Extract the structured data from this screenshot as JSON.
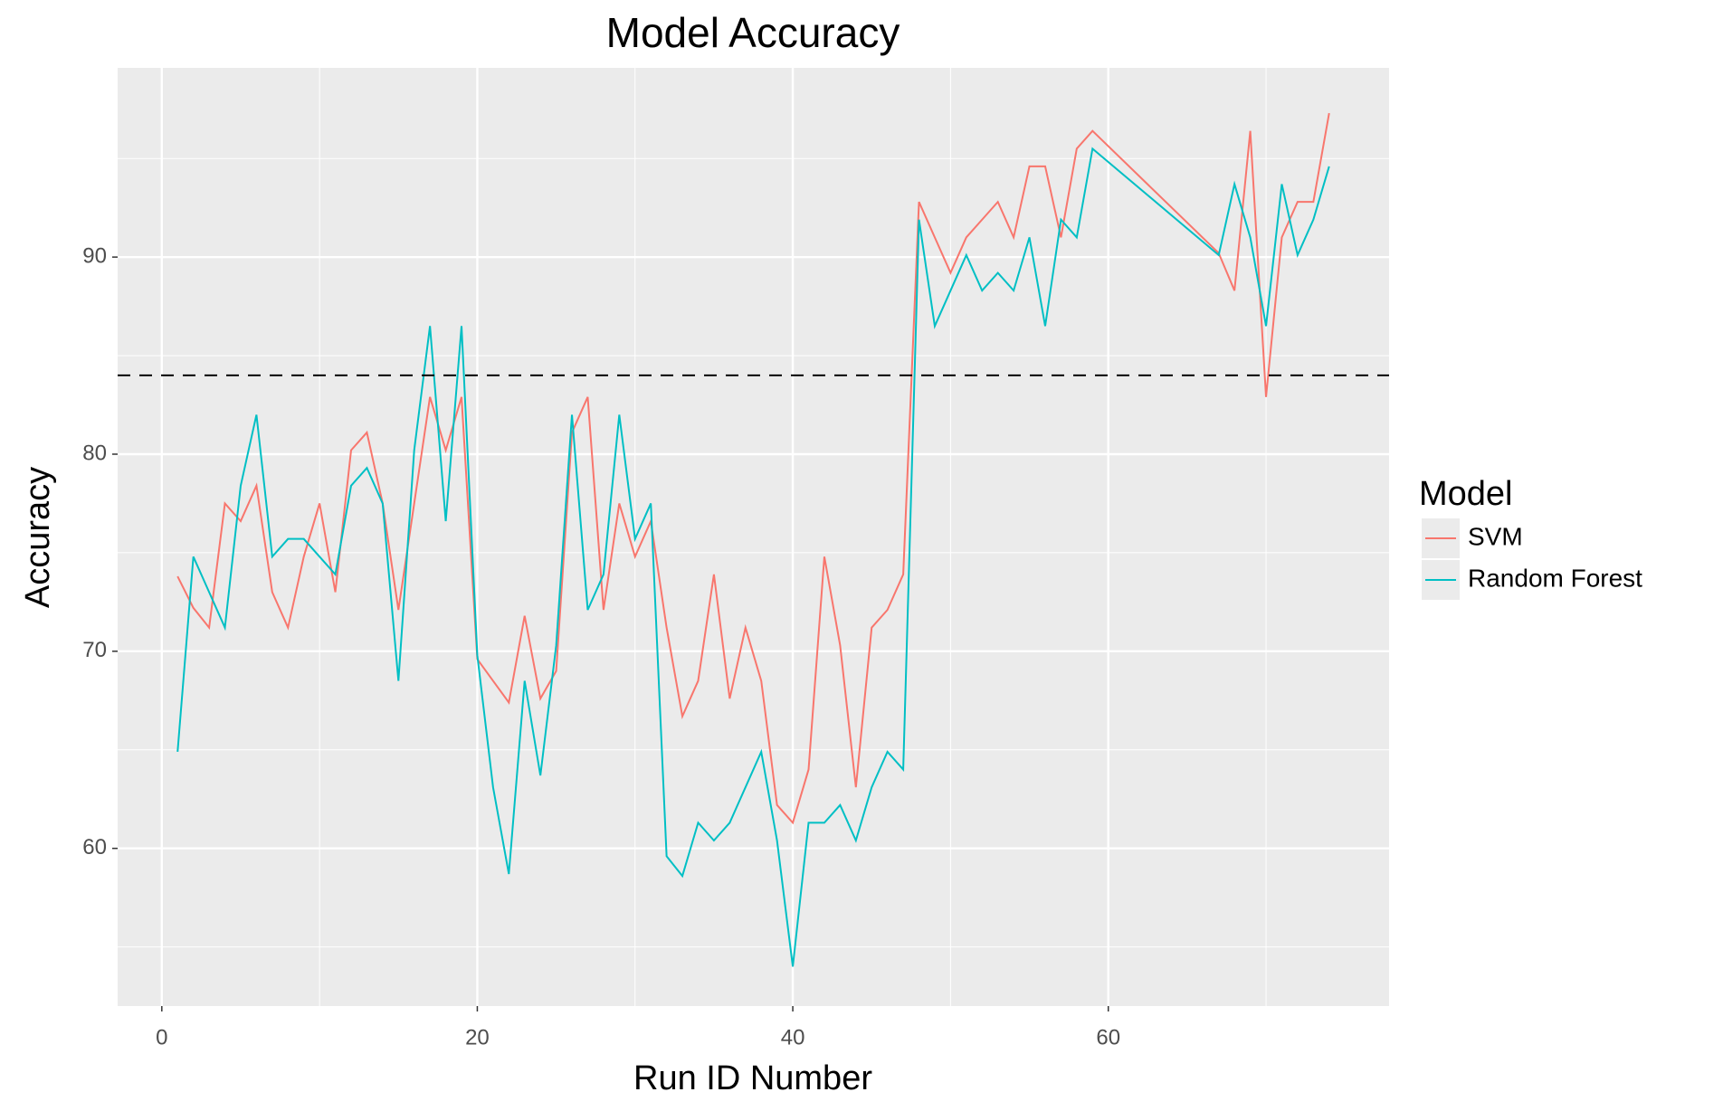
{
  "chart_data": {
    "type": "line",
    "title": "Model Accuracy",
    "x_label": "Run ID Number",
    "y_label": "Accuracy",
    "x": [
      1,
      2,
      3,
      4,
      5,
      6,
      7,
      8,
      9,
      10,
      11,
      12,
      13,
      14,
      15,
      16,
      17,
      18,
      19,
      20,
      21,
      22,
      23,
      24,
      25,
      26,
      27,
      28,
      29,
      30,
      31,
      32,
      33,
      34,
      35,
      36,
      37,
      38,
      39,
      40,
      41,
      42,
      43,
      44,
      45,
      46,
      47,
      48,
      49,
      50,
      51,
      52,
      53,
      54,
      55,
      56,
      57,
      58,
      59,
      67,
      68,
      69,
      70,
      71,
      72,
      73,
      74
    ],
    "series": [
      {
        "name": "SVM",
        "color": "#f8766d",
        "values": [
          73.8,
          72.2,
          71.2,
          77.5,
          76.6,
          78.4,
          73.0,
          71.2,
          74.8,
          77.5,
          73.0,
          80.2,
          81.1,
          77.5,
          72.1,
          77.5,
          82.9,
          80.2,
          82.9,
          69.6,
          68.5,
          67.4,
          71.8,
          67.6,
          69.0,
          81.1,
          82.9,
          72.1,
          77.5,
          74.8,
          76.6,
          71.2,
          66.7,
          68.5,
          73.9,
          67.6,
          71.2,
          68.5,
          62.2,
          61.3,
          64.0,
          74.8,
          70.3,
          63.1,
          71.2,
          72.1,
          73.9,
          92.8,
          91.0,
          89.2,
          91.0,
          91.9,
          92.8,
          91.0,
          94.6,
          94.6,
          91.0,
          95.5,
          96.4,
          90.2,
          88.3,
          96.4,
          82.9,
          91.0,
          92.8,
          92.8,
          97.3
        ]
      },
      {
        "name": "Random Forest",
        "color": "#00bfc4",
        "values": [
          64.9,
          74.8,
          73.0,
          71.2,
          78.4,
          82.0,
          74.8,
          75.7,
          75.7,
          74.8,
          73.9,
          78.4,
          79.3,
          77.5,
          68.5,
          80.2,
          86.5,
          76.6,
          86.5,
          69.8,
          63.1,
          58.7,
          68.5,
          63.7,
          70.3,
          82.0,
          72.1,
          73.9,
          82.0,
          75.7,
          77.5,
          59.6,
          58.6,
          61.3,
          60.4,
          61.3,
          63.1,
          64.9,
          60.4,
          54.0,
          61.3,
          61.3,
          62.2,
          60.4,
          63.1,
          64.9,
          64.0,
          91.9,
          86.5,
          88.3,
          90.1,
          88.3,
          89.2,
          88.3,
          91.0,
          86.5,
          91.9,
          91.0,
          95.5,
          90.1,
          93.7,
          91.0,
          86.5,
          93.7,
          90.1,
          91.9,
          94.6
        ]
      }
    ],
    "xlim": [
      -2.8,
      77.8
    ],
    "xticks": [
      0,
      20,
      40,
      60
    ],
    "ylim": [
      52.0,
      99.6
    ],
    "yticks": [
      60,
      70,
      80,
      90
    ],
    "grid": true,
    "reference_line": {
      "value": 84,
      "style": "dashed",
      "color": "#000000"
    },
    "legend_title": "Model",
    "legend_position": "right"
  }
}
